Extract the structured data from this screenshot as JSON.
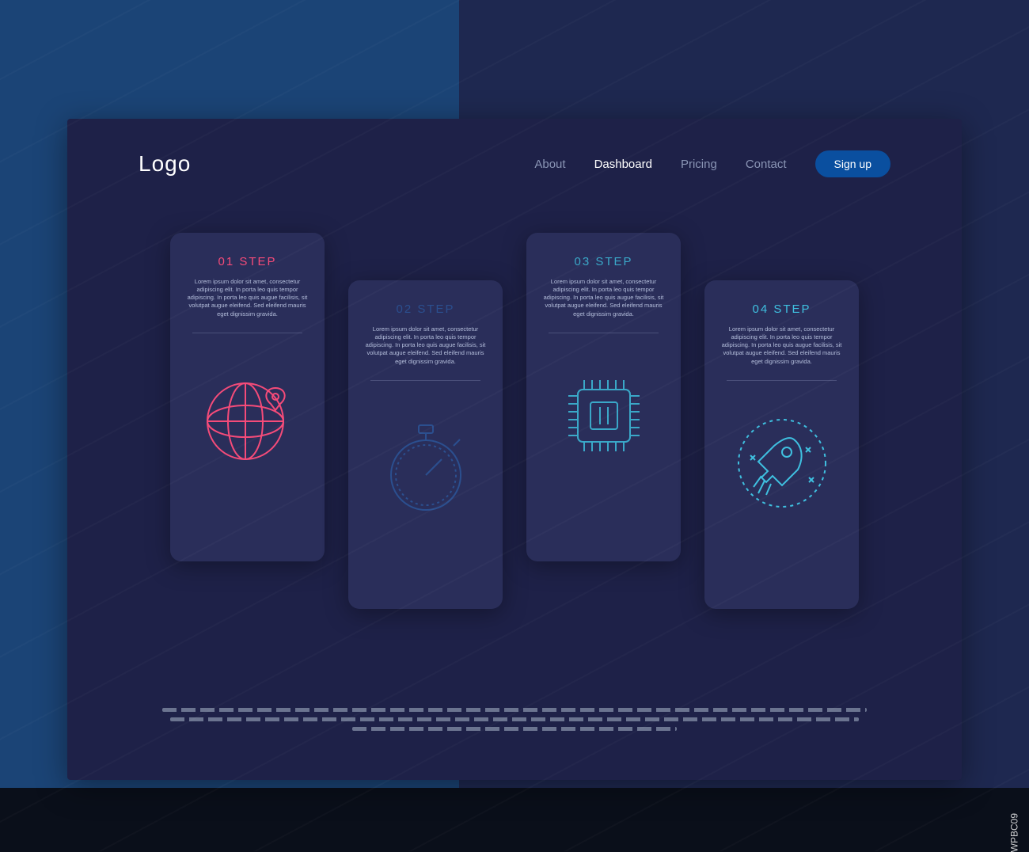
{
  "colors": {
    "bg_left": "#1b4476",
    "bg_right": "#1e2850",
    "panel": "#1e2148",
    "card": "#2a2e5a",
    "text_dim": "#8a95b5",
    "signup": "#0a4f9f"
  },
  "header": {
    "logo": "Logo",
    "nav": [
      {
        "label": "About",
        "active": false
      },
      {
        "label": "Dashboard",
        "active": true
      },
      {
        "label": "Pricing",
        "active": false
      },
      {
        "label": "Contact",
        "active": false
      }
    ],
    "signup_label": "Sign up"
  },
  "steps": [
    {
      "title": "01 STEP",
      "title_color": "#f54b79",
      "icon": "globe",
      "icon_color": "#f54b79",
      "offset": false,
      "text": "Lorem ipsum dolor sit amet, consectetur adipiscing elit. In porta leo quis tempor adipiscing. In porta leo quis augue facilisis, sit volutpat augue eleifend. Sed eleifend mauris eget dignissim gravida."
    },
    {
      "title": "02 STEP",
      "title_color": "#2b4f8f",
      "icon": "stopwatch",
      "icon_color": "#2b4f8f",
      "offset": true,
      "text": "Lorem ipsum dolor sit amet, consectetur adipiscing elit. In porta leo quis tempor adipiscing. In porta leo quis augue facilisis, sit volutpat augue eleifend. Sed eleifend mauris eget dignissim gravida."
    },
    {
      "title": "03 STEP",
      "title_color": "#3aa8c8",
      "icon": "chip",
      "icon_color": "#3aa8c8",
      "offset": false,
      "text": "Lorem ipsum dolor sit amet, consectetur adipiscing elit. In porta leo quis tempor adipiscing. In porta leo quis augue facilisis, sit volutpat augue eleifend. Sed eleifend mauris eget dignissim gravida."
    },
    {
      "title": "04 STEP",
      "title_color": "#3fc0e0",
      "icon": "rocket",
      "icon_color": "#3fc0e0",
      "offset": true,
      "text": "Lorem ipsum dolor sit amet, consectetur adipiscing elit. In porta leo quis tempor adipiscing. In porta leo quis augue facilisis, sit volutpat augue eleifend. Sed eleifend mauris eget dignissim gravida."
    }
  ],
  "attribution": "WPBC09"
}
